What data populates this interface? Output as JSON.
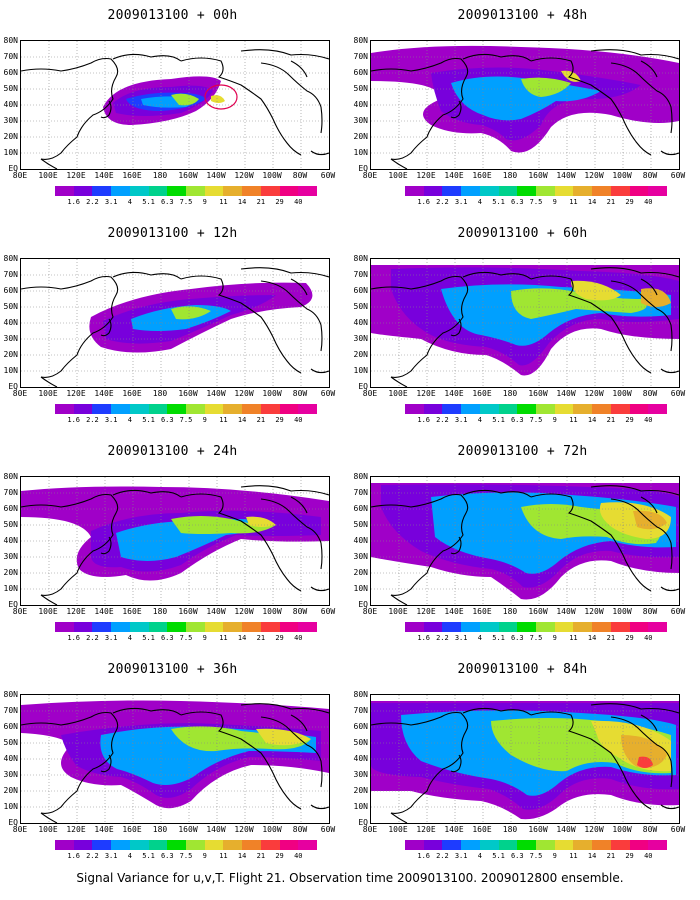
{
  "caption": "Signal Variance for u,v,T. Flight 21. Observation time 2009013100. 2009012800 ensemble.",
  "lat_labels": [
    "80N",
    "70N",
    "60N",
    "50N",
    "40N",
    "30N",
    "20N",
    "10N",
    "EQ"
  ],
  "lon_labels": [
    "80E",
    "100E",
    "120E",
    "140E",
    "160E",
    "180",
    "160W",
    "140W",
    "120W",
    "100W",
    "80W",
    "60W"
  ],
  "colorbar": {
    "labels": [
      "1.6",
      "2.2",
      "3.1",
      "4",
      "5.1",
      "6.3",
      "7.5",
      "9",
      "11",
      "14",
      "21",
      "29",
      "40"
    ],
    "colors": [
      "#a000c8",
      "#7800dc",
      "#1e3cff",
      "#00a0ff",
      "#00c8c8",
      "#00d28c",
      "#00dc00",
      "#a0e632",
      "#e6dc32",
      "#e6af2d",
      "#f08228",
      "#fa3c3c",
      "#f00082"
    ]
  },
  "panels": [
    {
      "title": "2009013100 + 00h"
    },
    {
      "title": "2009013100 + 48h"
    },
    {
      "title": "2009013100 + 12h"
    },
    {
      "title": "2009013100 + 60h"
    },
    {
      "title": "2009013100 + 24h"
    },
    {
      "title": "2009013100 + 72h"
    },
    {
      "title": "2009013100 + 36h"
    },
    {
      "title": "2009013100 + 84h"
    }
  ]
}
